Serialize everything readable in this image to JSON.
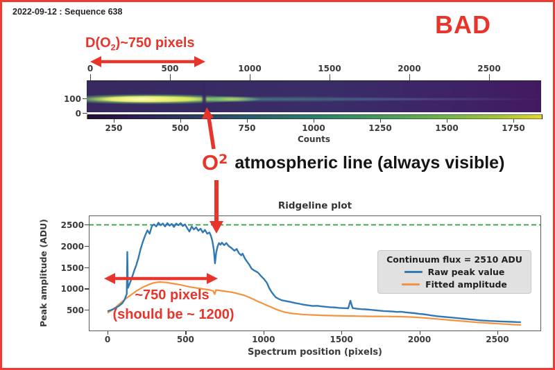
{
  "header": {
    "title": "2022-09-12 : Sequence 638",
    "status_label": "BAD"
  },
  "annotations": {
    "d_o2": {
      "pre": "D(O",
      "sub": "2",
      "post": ")~750 pixels"
    },
    "o2": {
      "main": "O",
      "sub": "2",
      "rest": "atmospheric line (always visible)"
    },
    "width_label": "~750 pixels",
    "width_sublabel": "(should be ~ 1200)"
  },
  "colors": {
    "annotation_red": "#e8352b",
    "raw_peak_blue": "#3278b4",
    "fitted_orange": "#f5923e",
    "continuum_green": "#2f9e3f"
  },
  "spectral_image": {
    "top_axis_ticks": [
      "0",
      "500",
      "1000",
      "1500",
      "2000",
      "2500"
    ],
    "y_ticks": [
      "100",
      "0"
    ],
    "colorbar_ticks": [
      "250",
      "500",
      "750",
      "1000",
      "1250",
      "1500",
      "1750"
    ],
    "colorbar_label": "Counts"
  },
  "chart_data": {
    "type": "line",
    "title": "Ridgeline plot",
    "xlabel": "Spectrum position (pixels)",
    "ylabel": "Peak amplitude (ADU)",
    "xlim": [
      -127,
      2937
    ],
    "ylim": [
      0,
      2730
    ],
    "x_ticks": [
      "0",
      "500",
      "1000",
      "1500",
      "2000",
      "2500"
    ],
    "y_ticks": [
      "2500",
      "2000",
      "1500",
      "1000",
      "500"
    ],
    "grid": false,
    "continuum_flux": 2510,
    "legend": {
      "position": "right",
      "title": "Continuum flux = 2510 ADU",
      "entries": [
        {
          "label": "Raw peak value",
          "color": "#3278b4"
        },
        {
          "label": "Fitted amplitude",
          "color": "#f5923e"
        }
      ]
    },
    "series": [
      {
        "name": "Raw peak value",
        "color": "#3278b4",
        "points": [
          [
            0,
            470
          ],
          [
            25,
            500
          ],
          [
            50,
            540
          ],
          [
            75,
            590
          ],
          [
            100,
            660
          ],
          [
            115,
            740
          ],
          [
            130,
            880
          ],
          [
            134,
            1870
          ],
          [
            138,
            1020
          ],
          [
            150,
            1120
          ],
          [
            165,
            1260
          ],
          [
            180,
            1420
          ],
          [
            195,
            1560
          ],
          [
            210,
            1740
          ],
          [
            225,
            1950
          ],
          [
            240,
            2120
          ],
          [
            255,
            2260
          ],
          [
            270,
            2380
          ],
          [
            285,
            2300
          ],
          [
            300,
            2480
          ],
          [
            315,
            2520
          ],
          [
            330,
            2470
          ],
          [
            345,
            2560
          ],
          [
            360,
            2500
          ],
          [
            375,
            2540
          ],
          [
            390,
            2470
          ],
          [
            405,
            2550
          ],
          [
            420,
            2490
          ],
          [
            435,
            2530
          ],
          [
            450,
            2460
          ],
          [
            465,
            2540
          ],
          [
            480,
            2500
          ],
          [
            495,
            2550
          ],
          [
            510,
            2480
          ],
          [
            525,
            2520
          ],
          [
            540,
            2430
          ],
          [
            555,
            2350
          ],
          [
            570,
            2470
          ],
          [
            585,
            2400
          ],
          [
            600,
            2450
          ],
          [
            615,
            2370
          ],
          [
            630,
            2420
          ],
          [
            645,
            2330
          ],
          [
            660,
            2390
          ],
          [
            675,
            2300
          ],
          [
            690,
            2330
          ],
          [
            700,
            2250
          ],
          [
            710,
            2130
          ],
          [
            720,
            1920
          ],
          [
            728,
            1600
          ],
          [
            736,
            1850
          ],
          [
            745,
            2000
          ],
          [
            755,
            2080
          ],
          [
            765,
            2040
          ],
          [
            775,
            2090
          ],
          [
            790,
            2030
          ],
          [
            805,
            2080
          ],
          [
            820,
            2010
          ],
          [
            840,
            1960
          ],
          [
            860,
            1900
          ],
          [
            875,
            1940
          ],
          [
            890,
            1840
          ],
          [
            905,
            1790
          ],
          [
            915,
            1830
          ],
          [
            930,
            1720
          ],
          [
            945,
            1640
          ],
          [
            960,
            1570
          ],
          [
            975,
            1480
          ],
          [
            990,
            1440
          ],
          [
            1005,
            1410
          ],
          [
            1020,
            1380
          ],
          [
            1040,
            1300
          ],
          [
            1060,
            1230
          ],
          [
            1080,
            1140
          ],
          [
            1095,
            1020
          ],
          [
            1110,
            930
          ],
          [
            1125,
            860
          ],
          [
            1140,
            800
          ],
          [
            1160,
            760
          ],
          [
            1180,
            730
          ],
          [
            1210,
            710
          ],
          [
            1240,
            690
          ],
          [
            1270,
            665
          ],
          [
            1300,
            645
          ],
          [
            1330,
            625
          ],
          [
            1360,
            610
          ],
          [
            1390,
            595
          ],
          [
            1420,
            600
          ],
          [
            1450,
            585
          ],
          [
            1480,
            575
          ],
          [
            1510,
            565
          ],
          [
            1540,
            560
          ],
          [
            1570,
            550
          ],
          [
            1600,
            545
          ],
          [
            1630,
            540
          ],
          [
            1645,
            720
          ],
          [
            1660,
            545
          ],
          [
            1690,
            530
          ],
          [
            1720,
            520
          ],
          [
            1750,
            515
          ],
          [
            1780,
            505
          ],
          [
            1810,
            495
          ],
          [
            1840,
            485
          ],
          [
            1870,
            475
          ],
          [
            1900,
            470
          ],
          [
            1930,
            465
          ],
          [
            1960,
            455
          ],
          [
            1990,
            460
          ],
          [
            2020,
            445
          ],
          [
            2050,
            435
          ],
          [
            2080,
            425
          ],
          [
            2110,
            410
          ],
          [
            2140,
            400
          ],
          [
            2170,
            385
          ],
          [
            2200,
            370
          ],
          [
            2230,
            355
          ],
          [
            2260,
            345
          ],
          [
            2290,
            335
          ],
          [
            2320,
            325
          ],
          [
            2350,
            315
          ],
          [
            2380,
            305
          ],
          [
            2410,
            295
          ],
          [
            2440,
            285
          ],
          [
            2470,
            275
          ],
          [
            2500,
            265
          ],
          [
            2530,
            255
          ],
          [
            2560,
            248
          ],
          [
            2590,
            242
          ],
          [
            2620,
            238
          ],
          [
            2650,
            232
          ],
          [
            2680,
            228
          ],
          [
            2710,
            224
          ],
          [
            2740,
            220
          ],
          [
            2770,
            216
          ],
          [
            2800,
            214
          ]
        ]
      },
      {
        "name": "Fitted amplitude",
        "color": "#f5923e",
        "points": [
          [
            0,
            430
          ],
          [
            40,
            520
          ],
          [
            80,
            640
          ],
          [
            120,
            760
          ],
          [
            160,
            860
          ],
          [
            200,
            960
          ],
          [
            240,
            1040
          ],
          [
            280,
            1100
          ],
          [
            310,
            1140
          ],
          [
            350,
            1160
          ],
          [
            400,
            1150
          ],
          [
            450,
            1120
          ],
          [
            500,
            1090
          ],
          [
            550,
            1050
          ],
          [
            600,
            1020
          ],
          [
            650,
            995
          ],
          [
            690,
            975
          ],
          [
            715,
            950
          ],
          [
            726,
            875
          ],
          [
            735,
            975
          ],
          [
            750,
            965
          ],
          [
            780,
            950
          ],
          [
            820,
            930
          ],
          [
            860,
            905
          ],
          [
            900,
            870
          ],
          [
            930,
            840
          ],
          [
            960,
            800
          ],
          [
            990,
            750
          ],
          [
            1020,
            700
          ],
          [
            1050,
            655
          ],
          [
            1080,
            610
          ],
          [
            1110,
            565
          ],
          [
            1140,
            520
          ],
          [
            1170,
            480
          ],
          [
            1200,
            450
          ],
          [
            1230,
            430
          ],
          [
            1260,
            415
          ],
          [
            1290,
            405
          ],
          [
            1320,
            395
          ],
          [
            1360,
            388
          ],
          [
            1400,
            382
          ],
          [
            1450,
            375
          ],
          [
            1500,
            370
          ],
          [
            1550,
            366
          ],
          [
            1600,
            362
          ],
          [
            1650,
            358
          ],
          [
            1700,
            354
          ],
          [
            1750,
            352
          ],
          [
            1800,
            350
          ],
          [
            1850,
            350
          ],
          [
            1900,
            348
          ],
          [
            1950,
            345
          ],
          [
            2000,
            342
          ],
          [
            2050,
            335
          ],
          [
            2100,
            325
          ],
          [
            2150,
            312
          ],
          [
            2200,
            298
          ],
          [
            2250,
            283
          ],
          [
            2300,
            268
          ],
          [
            2350,
            253
          ],
          [
            2400,
            238
          ],
          [
            2450,
            224
          ],
          [
            2500,
            210
          ],
          [
            2550,
            198
          ],
          [
            2600,
            186
          ],
          [
            2650,
            176
          ],
          [
            2700,
            166
          ],
          [
            2750,
            156
          ],
          [
            2800,
            148
          ]
        ]
      }
    ]
  }
}
